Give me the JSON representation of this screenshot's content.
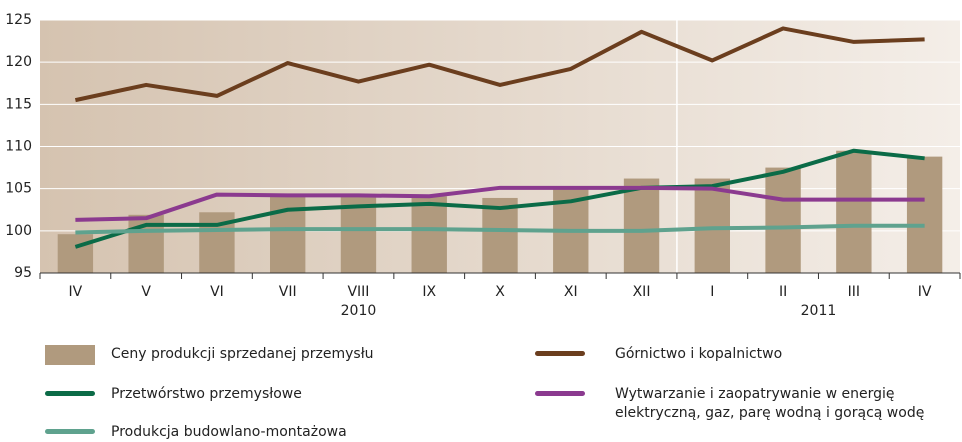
{
  "chart_data": {
    "type": "bar",
    "categories": [
      "IV",
      "V",
      "VI",
      "VII",
      "VIII",
      "IX",
      "X",
      "XI",
      "XII",
      "I",
      "II",
      "III",
      "IV"
    ],
    "years": [
      {
        "label": "2010",
        "span": 9
      },
      {
        "label": "2011",
        "span": 4
      }
    ],
    "ylim": [
      95,
      125
    ],
    "yticks": [
      95,
      100,
      105,
      110,
      115,
      120,
      125
    ],
    "series": [
      {
        "name": "Ceny produkcji sprzedanej przemysłu",
        "style": "bar",
        "color": "#b09a7e",
        "values": [
          99.6,
          101.9,
          102.2,
          104.1,
          104.1,
          104.1,
          103.9,
          105.0,
          106.2,
          106.2,
          107.5,
          109.5,
          108.8
        ]
      },
      {
        "name": "Górnictwo i kopalnictwo",
        "style": "line",
        "color": "#6b3e1e",
        "values": [
          115.5,
          117.3,
          116.0,
          119.9,
          117.7,
          119.7,
          117.3,
          119.2,
          123.6,
          120.2,
          124.0,
          122.4,
          122.7
        ]
      },
      {
        "name": "Przetwórstwo przemysłowe",
        "style": "line",
        "color": "#0b6b47",
        "values": [
          98.1,
          100.7,
          100.7,
          102.5,
          102.9,
          103.2,
          102.7,
          103.5,
          105.1,
          105.3,
          107.0,
          109.5,
          108.6
        ]
      },
      {
        "name": "Wytwarzanie i zaopatrywanie w energię elektryczną, gaz, parę wodną i gorącą wodę",
        "style": "line",
        "color": "#8b3a8f",
        "values": [
          101.3,
          101.5,
          104.3,
          104.2,
          104.2,
          104.1,
          105.1,
          105.1,
          105.1,
          105.0,
          103.7,
          103.7,
          103.7
        ]
      },
      {
        "name": "Produkcja budowlano-montażowa",
        "style": "line",
        "color": "#5fa28e",
        "values": [
          99.8,
          100.0,
          100.1,
          100.2,
          100.2,
          100.2,
          100.1,
          100.0,
          100.0,
          100.3,
          100.4,
          100.6,
          100.6
        ]
      }
    ]
  }
}
